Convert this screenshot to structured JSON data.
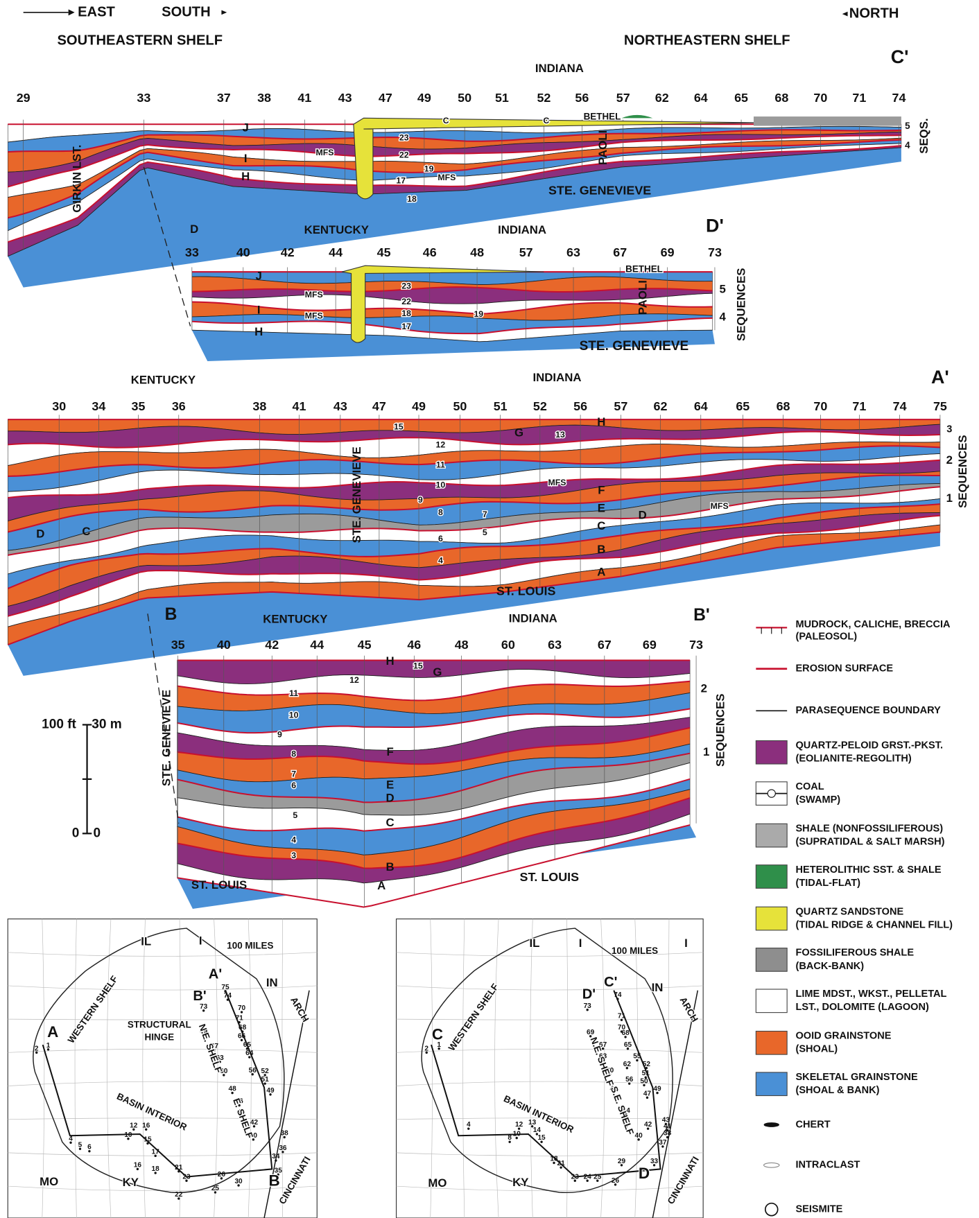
{
  "header": {
    "east": "EAST",
    "south": "SOUTH",
    "north": "NORTH",
    "left_title": "SOUTHEASTERN SHELF",
    "right_title": "NORTHEASTERN SHELF"
  },
  "sections": [
    {
      "wells": [
        "29",
        "33",
        "37",
        "38",
        "41",
        "43",
        "47",
        "49",
        "50",
        "51",
        "52",
        "56",
        "57",
        "62",
        "64",
        "65",
        "68",
        "70",
        "71",
        "74"
      ],
      "labels": [
        "C'",
        "INDIANA",
        "GIRKIN LST.",
        "J",
        "I",
        "H",
        "MFS",
        "23",
        "22",
        "19",
        "17",
        "18",
        "MFS",
        "BETHEL",
        "PAOLI",
        "STE. GENEVIEVE",
        "C",
        "C",
        "5",
        "4",
        "SEQS."
      ]
    },
    {
      "wells": [
        "33",
        "40",
        "42",
        "44",
        "45",
        "46",
        "48",
        "57",
        "63",
        "67",
        "69",
        "73"
      ],
      "labels": [
        "D",
        "KENTUCKY",
        "INDIANA",
        "D'",
        "J",
        "MFS",
        "I",
        "MFS",
        "H",
        "23",
        "22",
        "18",
        "17",
        "19",
        "BETHEL",
        "PAOLI",
        "5",
        "4",
        "SEQUENCES",
        "STE. GENEVIEVE"
      ]
    },
    {
      "wells": [
        "30",
        "34",
        "35",
        "36",
        "38",
        "41",
        "43",
        "47",
        "49",
        "50",
        "51",
        "52",
        "56",
        "57",
        "62",
        "64",
        "65",
        "68",
        "70",
        "71",
        "74",
        "75"
      ],
      "labels": [
        "KENTUCKY",
        "INDIANA",
        "A'",
        "15",
        "G",
        "13",
        "H",
        "12",
        "11",
        "10",
        "MFS",
        "F",
        "9",
        "8",
        "7",
        "E",
        "D",
        "MFS",
        "C",
        "6",
        "5",
        "B",
        "4",
        "A",
        "D",
        "C",
        "STE. GENEVIEVE",
        "ST. LOUIS",
        "3",
        "2",
        "1",
        "SEQUENCES"
      ]
    },
    {
      "wells": [
        "35",
        "40",
        "42",
        "44",
        "45",
        "46",
        "48",
        "60",
        "63",
        "67",
        "69",
        "73"
      ],
      "labels": [
        "B",
        "KENTUCKY",
        "INDIANA",
        "B'",
        "H",
        "15",
        "G",
        "12",
        "11",
        "10",
        "9",
        "8",
        "7",
        "6",
        "5",
        "4",
        "3",
        "F",
        "E",
        "D",
        "C",
        "B",
        "A",
        "STE. GENEVIEVE",
        "ST. LOUIS",
        "ST. LOUIS",
        "2",
        "1",
        "SEQUENCES"
      ]
    }
  ],
  "scale": {
    "ft": "100 ft",
    "m": "30 m",
    "zero_ft": "0",
    "zero_m": "0"
  },
  "legend": [
    {
      "label": "MUDROCK, CALICHE, BRECCIA",
      "sublabel": "(PALEOSOL)"
    },
    {
      "label": "EROSION SURFACE"
    },
    {
      "label": "PARASEQUENCE BOUNDARY"
    },
    {
      "label": "QUARTZ-PELOID GRST.-PKST.",
      "sublabel": "(EOLIANITE-REGOLITH)"
    },
    {
      "label": "COAL",
      "sublabel": "(SWAMP)"
    },
    {
      "label": "SHALE (NONFOSSILIFEROUS)",
      "sublabel": "(SUPRATIDAL & SALT MARSH)"
    },
    {
      "label": "HETEROLITHIC SST. & SHALE",
      "sublabel": "(TIDAL-FLAT)"
    },
    {
      "label": "QUARTZ SANDSTONE",
      "sublabel": "(TIDAL RIDGE & CHANNEL FILL)"
    },
    {
      "label": "FOSSILIFEROUS SHALE",
      "sublabel": "(BACK-BANK)"
    },
    {
      "label": "LIME MDST., WKST., PELLETAL",
      "sublabel": "LST., DOLOMITE (LAGOON)"
    },
    {
      "label": "OOID GRAINSTONE",
      "sublabel": "(SHOAL)"
    },
    {
      "label": "SKELETAL GRAINSTONE",
      "sublabel": "(SHOAL & BANK)"
    },
    {
      "label": "CHERT"
    },
    {
      "label": "INTRACLAST"
    },
    {
      "label": "SEISMITE"
    }
  ],
  "maps": [
    {
      "labels": [
        "IL",
        "I",
        "100 MILES",
        "IN",
        "A'",
        "B'",
        "STRUCTURAL",
        "HINGE",
        "WESTERN SHELF",
        "A",
        "BASIN INTERIOR",
        "N.E. SHELF",
        "E. SHELF",
        "ARCH",
        "CINCINNATI",
        "MO",
        "KY",
        "B"
      ],
      "wells": [
        "2",
        "1",
        "4",
        "5",
        "6",
        "10",
        "12",
        "16",
        "15",
        "17",
        "16",
        "18",
        "21",
        "23",
        "22",
        "25",
        "26",
        "30",
        "35",
        "34",
        "36",
        "38",
        "40",
        "42",
        "44",
        "46",
        "48",
        "49",
        "51",
        "52",
        "56",
        "60",
        "63",
        "64",
        "65",
        "66",
        "67",
        "68",
        "69",
        "70",
        "71",
        "73",
        "74",
        "75"
      ]
    },
    {
      "labels": [
        "IL",
        "I",
        "100 MILES",
        "I",
        "IN",
        "C'",
        "D'",
        "WESTERN SHELF",
        "C",
        "BASIN INTERIOR",
        "N.E. SHELF",
        "S.E. SHELF",
        "ARCH",
        "CINCINNATI",
        "MO",
        "KY",
        "D"
      ],
      "wells": [
        "2",
        "1",
        "4",
        "8",
        "10",
        "12",
        "13",
        "14",
        "15",
        "18",
        "21",
        "23",
        "24",
        "25",
        "26",
        "29",
        "33",
        "37",
        "38",
        "40",
        "41",
        "42",
        "43",
        "44",
        "45",
        "47",
        "48",
        "49",
        "50",
        "51",
        "52",
        "55",
        "56",
        "60",
        "62",
        "63",
        "65",
        "67",
        "68",
        "69",
        "70",
        "71",
        "73",
        "74"
      ]
    }
  ]
}
